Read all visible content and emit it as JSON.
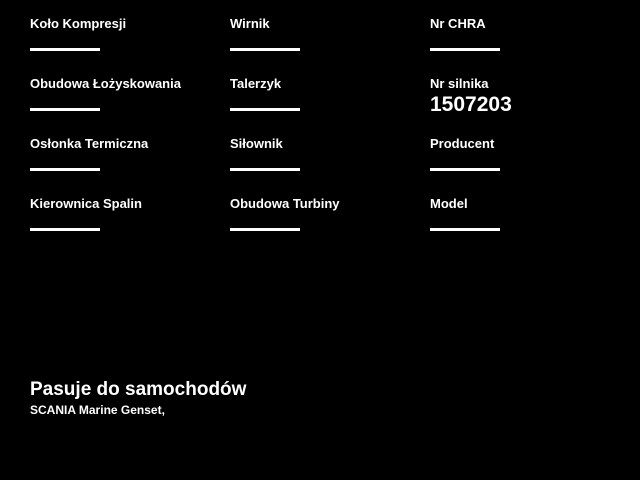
{
  "theme": {
    "background_color": "#000000",
    "text_color": "#ffffff"
  },
  "form": {
    "fields": [
      {
        "label": "Koło Kompresji",
        "value": ""
      },
      {
        "label": "Wirnik",
        "value": ""
      },
      {
        "label": "Nr CHRA",
        "value": ""
      },
      {
        "label": "Obudowa Łożyskowania",
        "value": ""
      },
      {
        "label": "Talerzyk",
        "value": ""
      },
      {
        "label": "Nr silnika",
        "value": "1507203"
      },
      {
        "label": "Osłonka Termiczna",
        "value": ""
      },
      {
        "label": "Siłownik",
        "value": ""
      },
      {
        "label": "Producent",
        "value": ""
      },
      {
        "label": "Kierownica Spalin",
        "value": ""
      },
      {
        "label": "Obudowa Turbiny",
        "value": ""
      },
      {
        "label": "Model",
        "value": ""
      }
    ]
  },
  "compatibility": {
    "heading": "Pasuje do samochodów",
    "vehicles": "SCANIA Marine Genset,"
  }
}
